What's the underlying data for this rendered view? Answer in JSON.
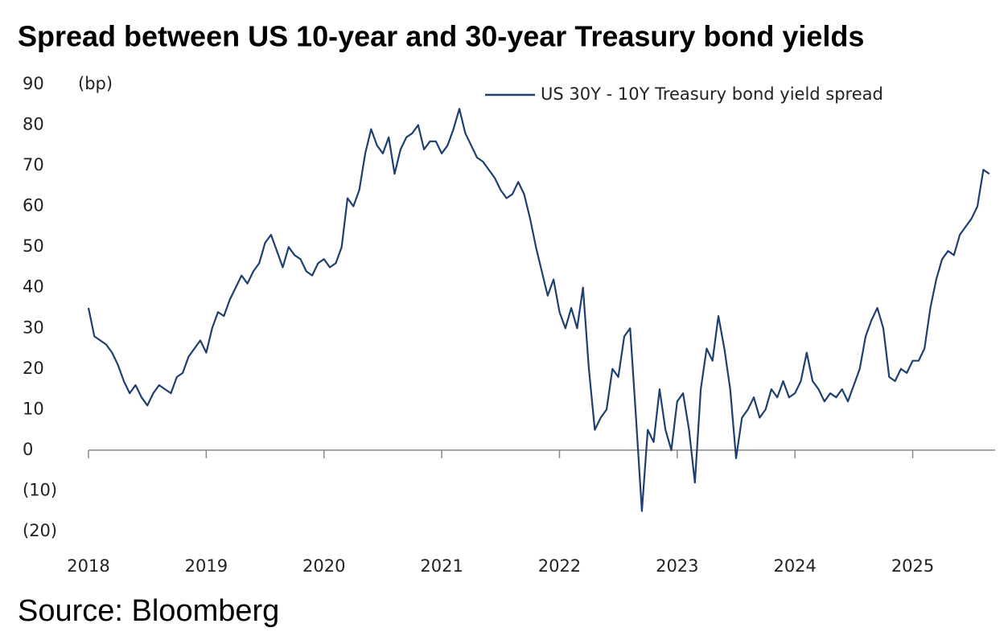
{
  "chart_data": {
    "type": "line",
    "title": "Spread between US 10-year and 30-year Treasury bond yields",
    "y_label": "(bp)",
    "source": "Source: Bloomberg",
    "legend": "top-right",
    "grid": false,
    "xlim": [
      2018,
      2025.7
    ],
    "xticks": [
      2018,
      2019,
      2020,
      2021,
      2022,
      2023,
      2024,
      2025
    ],
    "ylim": [
      -20,
      90
    ],
    "yticks": [
      {
        "value": -20,
        "label": "(20)"
      },
      {
        "value": -10,
        "label": "(10)"
      },
      0,
      10,
      20,
      30,
      40,
      50,
      60,
      70,
      80,
      90
    ],
    "x": [
      2018.0,
      2018.05,
      2018.1,
      2018.15,
      2018.2,
      2018.25,
      2018.3,
      2018.35,
      2018.4,
      2018.45,
      2018.5,
      2018.55,
      2018.6,
      2018.65,
      2018.7,
      2018.75,
      2018.8,
      2018.85,
      2018.9,
      2018.95,
      2019.0,
      2019.05,
      2019.1,
      2019.15,
      2019.2,
      2019.25,
      2019.3,
      2019.35,
      2019.4,
      2019.45,
      2019.5,
      2019.55,
      2019.6,
      2019.65,
      2019.7,
      2019.75,
      2019.8,
      2019.85,
      2019.9,
      2019.95,
      2020.0,
      2020.05,
      2020.1,
      2020.15,
      2020.2,
      2020.25,
      2020.3,
      2020.35,
      2020.4,
      2020.45,
      2020.5,
      2020.55,
      2020.6,
      2020.65,
      2020.7,
      2020.75,
      2020.8,
      2020.85,
      2020.9,
      2020.95,
      2021.0,
      2021.05,
      2021.1,
      2021.15,
      2021.2,
      2021.25,
      2021.3,
      2021.35,
      2021.4,
      2021.45,
      2021.5,
      2021.55,
      2021.6,
      2021.65,
      2021.7,
      2021.75,
      2021.8,
      2021.85,
      2021.9,
      2021.95,
      2022.0,
      2022.05,
      2022.1,
      2022.15,
      2022.2,
      2022.25,
      2022.3,
      2022.35,
      2022.4,
      2022.45,
      2022.5,
      2022.55,
      2022.6,
      2022.65,
      2022.7,
      2022.75,
      2022.8,
      2022.85,
      2022.9,
      2022.95,
      2023.0,
      2023.05,
      2023.1,
      2023.15,
      2023.2,
      2023.25,
      2023.3,
      2023.35,
      2023.4,
      2023.45,
      2023.5,
      2023.55,
      2023.6,
      2023.65,
      2023.7,
      2023.75,
      2023.8,
      2023.85,
      2023.9,
      2023.95,
      2024.0,
      2024.05,
      2024.1,
      2024.15,
      2024.2,
      2024.25,
      2024.3,
      2024.35,
      2024.4,
      2024.45,
      2024.5,
      2024.55,
      2024.6,
      2024.65,
      2024.7,
      2024.75,
      2024.8,
      2024.85,
      2024.9,
      2024.95,
      2025.0,
      2025.05,
      2025.1,
      2025.15,
      2025.2,
      2025.25,
      2025.3,
      2025.35,
      2025.4,
      2025.45,
      2025.5,
      2025.55,
      2025.6,
      2025.65
    ],
    "series": [
      {
        "name": "US 30Y - 10Y Treasury bond yield spread",
        "color": "#1f3f6e",
        "values": [
          35,
          28,
          27,
          26,
          24,
          21,
          17,
          14,
          16,
          13,
          11,
          14,
          16,
          15,
          14,
          18,
          19,
          23,
          25,
          27,
          24,
          30,
          34,
          33,
          37,
          40,
          43,
          41,
          44,
          46,
          51,
          53,
          49,
          45,
          50,
          48,
          47,
          44,
          43,
          46,
          47,
          45,
          46,
          50,
          62,
          60,
          64,
          73,
          79,
          75,
          73,
          77,
          68,
          74,
          77,
          78,
          80,
          74,
          76,
          76,
          73,
          75,
          79,
          84,
          78,
          75,
          72,
          71,
          69,
          67,
          64,
          62,
          63,
          66,
          63,
          57,
          50,
          44,
          38,
          42,
          34,
          30,
          35,
          30,
          40,
          20,
          5,
          8,
          10,
          20,
          18,
          28,
          30,
          8,
          -15,
          5,
          2,
          15,
          5,
          0,
          12,
          14,
          5,
          -8,
          15,
          25,
          22,
          33,
          25,
          15,
          -2,
          8,
          10,
          13,
          8,
          10,
          15,
          13,
          17,
          13,
          14,
          17,
          24,
          17,
          15,
          12,
          14,
          13,
          15,
          12,
          16,
          20,
          28,
          32,
          35,
          30,
          18,
          17,
          20,
          19,
          22,
          22,
          25,
          35,
          42,
          47,
          49,
          48,
          53,
          55,
          57,
          60,
          69,
          68
        ]
      }
    ]
  }
}
